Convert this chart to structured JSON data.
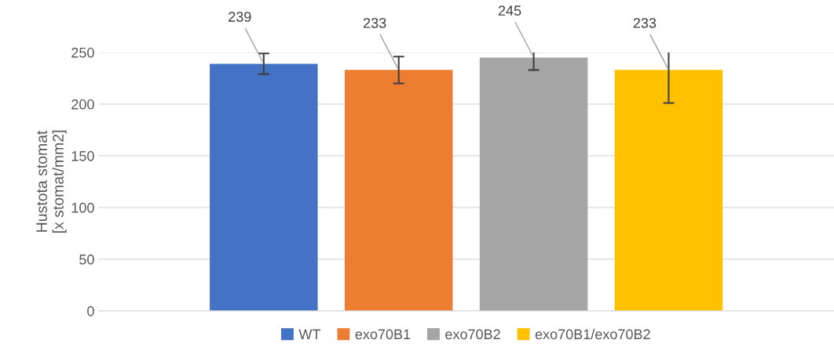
{
  "chart_data": {
    "type": "bar",
    "ylabel": "Hustota stomat\n[x stomat/mm2]",
    "categories": [
      null
    ],
    "series": [
      {
        "name": "WT",
        "color": "#4472c4",
        "values": [
          239
        ],
        "errors": [
          10
        ]
      },
      {
        "name": "exo70B1",
        "color": "#ed7d31",
        "values": [
          233
        ],
        "errors": [
          13
        ]
      },
      {
        "name": "exo70B2",
        "color": "#a5a5a5",
        "values": [
          245
        ],
        "errors": [
          12
        ]
      },
      {
        "name": "exo70B1/exo70B2",
        "color": "#ffc000",
        "values": [
          233
        ],
        "errors": [
          32
        ]
      }
    ],
    "ylim": [
      0,
      250
    ],
    "yticks": [
      0,
      50,
      100,
      150,
      200,
      250
    ],
    "grid": "y",
    "legend": "bottom",
    "data_labels": true
  }
}
